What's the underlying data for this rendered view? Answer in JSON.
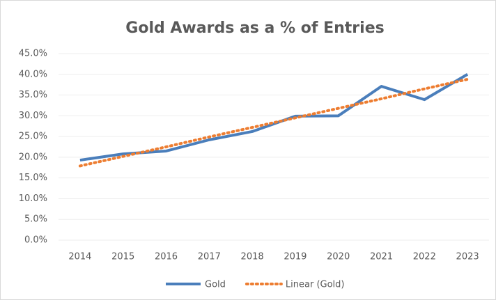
{
  "chart_data": {
    "type": "line",
    "title": "Gold Awards as a % of Entries",
    "categories": [
      "2014",
      "2015",
      "2016",
      "2017",
      "2018",
      "2019",
      "2020",
      "2021",
      "2022",
      "2023"
    ],
    "series": [
      {
        "name": "Gold",
        "color": "#4a7ebb",
        "line_style": "solid",
        "values": [
          19.3,
          20.8,
          21.5,
          24.2,
          26.2,
          29.9,
          30.0,
          37.1,
          33.9,
          40.0
        ]
      },
      {
        "name": "Linear (Gold)",
        "color": "#ed7d31",
        "line_style": "dotted",
        "values": [
          17.9,
          20.2,
          22.5,
          24.9,
          27.2,
          29.5,
          31.8,
          34.1,
          36.5,
          38.8
        ]
      }
    ],
    "ylim": [
      0,
      45
    ],
    "yticks": [
      {
        "value": 0,
        "label": "0.0%"
      },
      {
        "value": 5,
        "label": "5.0%"
      },
      {
        "value": 10,
        "label": "10.0%"
      },
      {
        "value": 15,
        "label": "15.0%"
      },
      {
        "value": 20,
        "label": "20.0%"
      },
      {
        "value": 25,
        "label": "25.0%"
      },
      {
        "value": 30,
        "label": "30.0%"
      },
      {
        "value": 35,
        "label": "35.0%"
      },
      {
        "value": 40,
        "label": "40.0%"
      },
      {
        "value": 45,
        "label": "45.0%"
      }
    ],
    "grid": true,
    "legend": "bottom"
  }
}
